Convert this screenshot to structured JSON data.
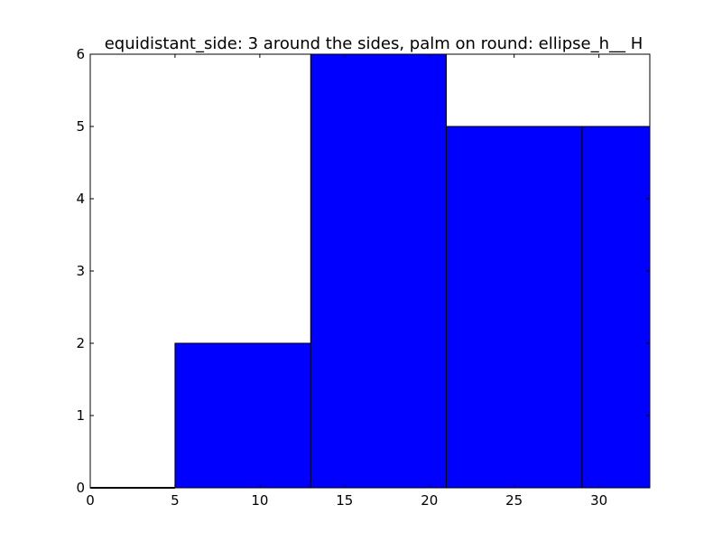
{
  "chart_data": {
    "type": "bar",
    "title": "equidistant_side: 3 around the sides, palm on round: ellipse_h__ H",
    "xlabel": "",
    "ylabel": "",
    "bins": [
      {
        "x0": 0,
        "x1": 5,
        "value": 0
      },
      {
        "x0": 5,
        "x1": 13,
        "value": 2
      },
      {
        "x0": 13,
        "x1": 21,
        "value": 6
      },
      {
        "x0": 21,
        "x1": 29,
        "value": 5
      },
      {
        "x0": 29,
        "x1": 33,
        "value": 5
      }
    ],
    "xlim": [
      0,
      33
    ],
    "ylim": [
      0,
      6
    ],
    "xticks": [
      0,
      5,
      10,
      15,
      20,
      25,
      30
    ],
    "yticks": [
      0,
      1,
      2,
      3,
      4,
      5,
      6
    ],
    "grid": false,
    "bar_color": "#0000ff",
    "edge_color": "#000000"
  }
}
